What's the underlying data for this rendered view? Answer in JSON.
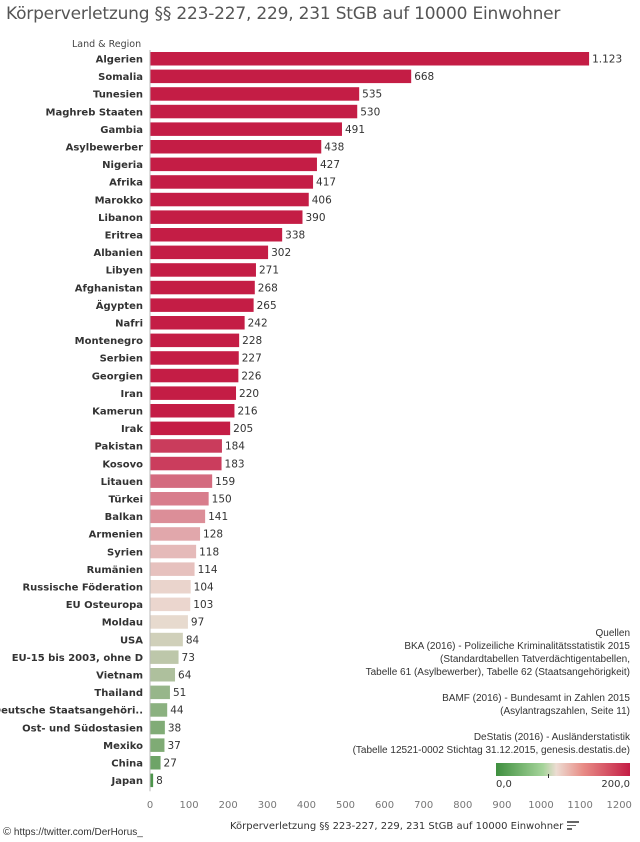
{
  "title": "Körperverletzung §§ 223-227, 229, 231 StGB  auf 10000 Einwohner",
  "row_header": "Land & Region",
  "chart_data": {
    "type": "bar",
    "orientation": "horizontal",
    "title": "Körperverletzung §§ 223-227, 229, 231 StGB  auf 10000 Einwohner",
    "xlabel": "Körperverletzung §§ 223-227, 229, 231 StGB  auf 10000 Einwohner",
    "ylabel": "Land & Region",
    "xlim": [
      0,
      1250
    ],
    "ticks": [
      "0",
      "100",
      "200",
      "300",
      "400",
      "500",
      "600",
      "700",
      "800",
      "900",
      "1000",
      "1100",
      "1200"
    ],
    "tick_values": [
      0,
      100,
      200,
      300,
      400,
      500,
      600,
      700,
      800,
      900,
      1000,
      1100,
      1200
    ],
    "categories": [
      "Algerien",
      "Somalia",
      "Tunesien",
      "Maghreb Staaten",
      "Gambia",
      "Asylbewerber",
      "Nigeria",
      "Afrika",
      "Marokko",
      "Libanon",
      "Eritrea",
      "Albanien",
      "Libyen",
      "Afghanistan",
      "Ägypten",
      "Nafri",
      "Montenegro",
      "Serbien",
      "Georgien",
      "Iran",
      "Kamerun",
      "Irak",
      "Pakistan",
      "Kosovo",
      "Litauen",
      "Türkei",
      "Balkan",
      "Armenien",
      "Syrien",
      "Rumänien",
      "Russische Föderation",
      "EU Osteuropa",
      "Moldau",
      "USA",
      "EU-15 bis 2003, ohne D",
      "Vietnam",
      "Thailand",
      "Deutsche Staatsangehöri..",
      "Ost- und Südostasien",
      "Mexiko",
      "China",
      "Japan"
    ],
    "values": [
      1123,
      668,
      535,
      530,
      491,
      438,
      427,
      417,
      406,
      390,
      338,
      302,
      271,
      268,
      265,
      242,
      228,
      227,
      226,
      220,
      216,
      205,
      184,
      183,
      159,
      150,
      141,
      128,
      118,
      114,
      104,
      103,
      97,
      84,
      73,
      64,
      51,
      44,
      38,
      37,
      27,
      8
    ],
    "value_labels": [
      "1.123",
      "668",
      "535",
      "530",
      "491",
      "438",
      "427",
      "417",
      "406",
      "390",
      "338",
      "302",
      "271",
      "268",
      "265",
      "242",
      "228",
      "227",
      "226",
      "220",
      "216",
      "205",
      "184",
      "183",
      "159",
      "150",
      "141",
      "128",
      "118",
      "114",
      "104",
      "103",
      "97",
      "84",
      "73",
      "64",
      "51",
      "44",
      "38",
      "37",
      "27",
      "8"
    ],
    "color_scale": {
      "min": 0,
      "max": 200,
      "min_label": "0,0",
      "max_label": "200,0",
      "low_color": "#3f8f3f",
      "mid_color": "#ecdcd2",
      "high_color": "#c41d45"
    },
    "grid": false,
    "legend": "bottom-right"
  },
  "sources": {
    "heading": "Quellen",
    "lines": [
      "BKA (2016) - Polizeiliche Kriminalitätsstatistik 2015",
      "(Standardtabellen Tatverdächtigentabellen,",
      "Tabelle 61 (Asylbewerber), Tabelle 62 (Staatsangehörigkeit)",
      "",
      "BAMF (2016) - Bundesamt in Zahlen 2015",
      "(Asylantragszahlen, Seite 11)",
      "",
      "DeStatis (2016) -  Ausländerstatistik",
      "(Tabelle 12521-0002 Stichtag 31.12.2015,  genesis.destatis.de)"
    ]
  },
  "legend": {
    "min_label": "0,0",
    "max_label": "200,0"
  },
  "credit": {
    "symbol": "©",
    "text": " https://twitter.com/DerHorus_"
  }
}
